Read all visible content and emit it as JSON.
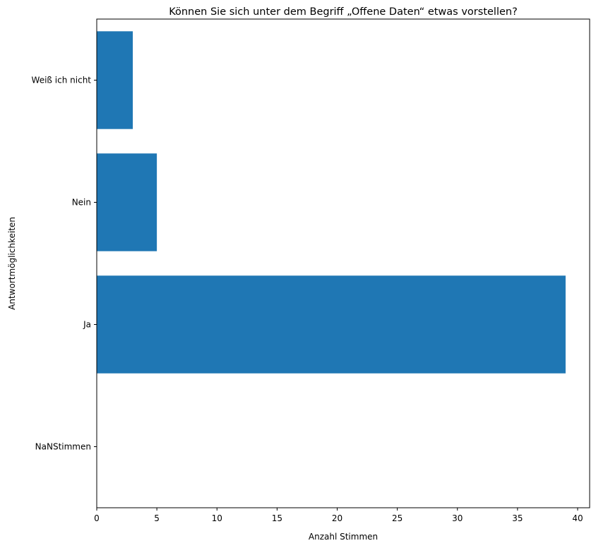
{
  "chart_data": {
    "type": "bar",
    "orientation": "horizontal",
    "title": "Können Sie sich unter dem Begriff „Offene Daten“ etwas vorstellen?",
    "xlabel": "Anzahl Stimmen",
    "ylabel": "Antwortmöglichkeiten",
    "categories": [
      "NaNStimmen",
      "Ja",
      "Nein",
      "Weiß ich nicht"
    ],
    "values": [
      null,
      39,
      5,
      3
    ],
    "xlim": [
      0,
      41
    ],
    "xticks": [
      0,
      5,
      10,
      15,
      20,
      25,
      30,
      35,
      40
    ],
    "grid": false,
    "bar_color": "#1f77b4"
  }
}
